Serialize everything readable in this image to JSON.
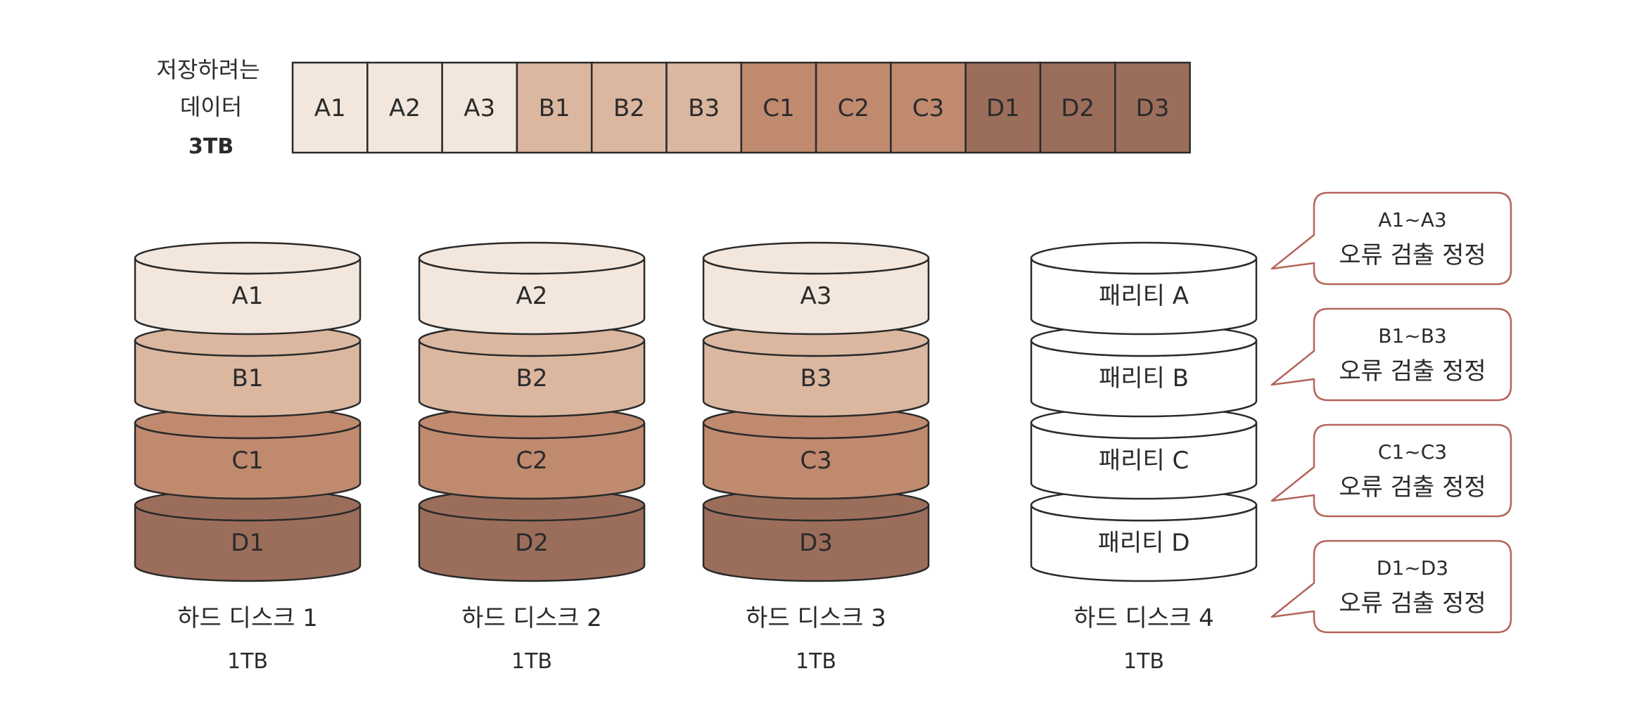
{
  "colors": {
    "a": "#f3e6dc",
    "b": "#dbb7a0",
    "c": "#c08a6f",
    "d": "#9b6e5b",
    "parity": "#ffffff",
    "outline": "#2a2a2a",
    "callout_border": "#b5645a"
  },
  "data_label": {
    "line1": "저장하려는",
    "line2": "데이터",
    "line3": "3TB"
  },
  "data_blocks": [
    {
      "label": "A1",
      "group": "a"
    },
    {
      "label": "A2",
      "group": "a"
    },
    {
      "label": "A3",
      "group": "a"
    },
    {
      "label": "B1",
      "group": "b"
    },
    {
      "label": "B2",
      "group": "b"
    },
    {
      "label": "B3",
      "group": "b"
    },
    {
      "label": "C1",
      "group": "c"
    },
    {
      "label": "C2",
      "group": "c"
    },
    {
      "label": "C3",
      "group": "c"
    },
    {
      "label": "D1",
      "group": "d"
    },
    {
      "label": "D2",
      "group": "d"
    },
    {
      "label": "D3",
      "group": "d"
    }
  ],
  "disks": [
    {
      "name": "하드 디스크 1",
      "capacity": "1TB",
      "slices": [
        {
          "label": "A1",
          "group": "a"
        },
        {
          "label": "B1",
          "group": "b"
        },
        {
          "label": "C1",
          "group": "c"
        },
        {
          "label": "D1",
          "group": "d"
        }
      ]
    },
    {
      "name": "하드 디스크 2",
      "capacity": "1TB",
      "slices": [
        {
          "label": "A2",
          "group": "a"
        },
        {
          "label": "B2",
          "group": "b"
        },
        {
          "label": "C2",
          "group": "c"
        },
        {
          "label": "D2",
          "group": "d"
        }
      ]
    },
    {
      "name": "하드 디스크 3",
      "capacity": "1TB",
      "slices": [
        {
          "label": "A3",
          "group": "a"
        },
        {
          "label": "B3",
          "group": "b"
        },
        {
          "label": "C3",
          "group": "c"
        },
        {
          "label": "D3",
          "group": "d"
        }
      ]
    },
    {
      "name": "하드 디스크 4",
      "capacity": "1TB",
      "slices": [
        {
          "label": "패리티 A",
          "group": "parity"
        },
        {
          "label": "패리티 B",
          "group": "parity"
        },
        {
          "label": "패리티 C",
          "group": "parity"
        },
        {
          "label": "패리티 D",
          "group": "parity"
        }
      ]
    }
  ],
  "callouts": [
    {
      "range": "A1~A3",
      "text": "오류 검출 정정"
    },
    {
      "range": "B1~B3",
      "text": "오류 검출 정정"
    },
    {
      "range": "C1~C3",
      "text": "오류 검출 정정"
    },
    {
      "range": "D1~D3",
      "text": "오류 검출 정정"
    }
  ]
}
